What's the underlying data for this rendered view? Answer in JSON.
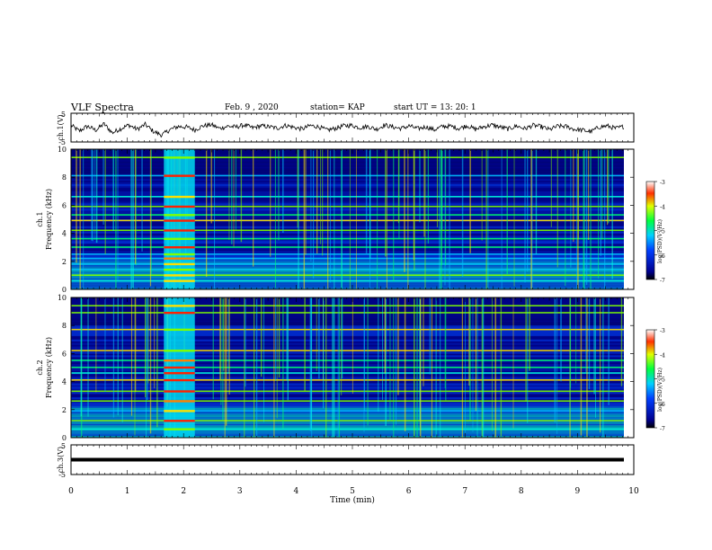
{
  "header": {
    "title": "VLF Spectra",
    "date": "Feb. 9  , 2020",
    "station": "station= KAP",
    "start": "start  UT  =   13: 20: 1"
  },
  "chart_data": [
    {
      "type": "line",
      "panel": "ch1-waveform",
      "ylabel": "ch.1(V)",
      "ylim": [
        -5,
        5
      ],
      "yticks": [
        "5",
        "-5"
      ],
      "xlim": [
        0,
        10
      ],
      "series": [
        {
          "values": [
            0.8,
            -1.2,
            0.5,
            -0.9,
            1.3,
            -1.8,
            -0.4,
            0.9,
            -0.6,
            1.1,
            -1.4,
            -2.6,
            -0.7,
            0.4,
            0.2,
            -0.8,
            0.6,
            1.0,
            -0.3,
            0.5,
            0.2,
            0.9,
            -0.1,
            0.6,
            0.3,
            -0.2,
            0.8,
            0.1,
            -0.5,
            0.7,
            0.3,
            -0.9,
            -0.3,
            0.6,
            0.8,
            0.0,
            0.4,
            -0.6,
            0.9,
            0.2,
            -0.3,
            0.6,
            -0.4,
            0.3,
            -0.8,
            0.4,
            0.5,
            -0.3,
            0.7,
            -0.6,
            0.3,
            0.9,
            0.2,
            -0.5,
            0.6,
            -0.4,
            0.8,
            0.3,
            -0.7,
            0.5,
            0.4,
            -0.6,
            -0.9,
            -1.4,
            0.2,
            0.6,
            -0.3,
            0.4
          ]
        }
      ]
    },
    {
      "type": "heatmap",
      "panel": "ch1-spectrogram",
      "ylabel": "ch.1\nFrequency  (kHz)",
      "ylim": [
        0,
        10
      ],
      "yticks": [
        "0",
        "2",
        "4",
        "6",
        "8",
        "10"
      ],
      "xlim": [
        0,
        10
      ],
      "colorbar": {
        "label": "log(PSD)(V²/Hz)",
        "range": [
          -7,
          -3
        ],
        "ticks": [
          "-3",
          "-4",
          "-5",
          "-6",
          "-7"
        ]
      },
      "burst_min": [
        1.65,
        2.2
      ],
      "bands_khz": [
        0.6,
        1.0,
        1.4,
        1.8,
        2.2,
        2.5,
        3.0,
        3.6,
        4.2,
        4.9,
        5.3,
        5.9,
        6.6,
        8.1,
        9.4
      ]
    },
    {
      "type": "heatmap",
      "panel": "ch2-spectrogram",
      "ylabel": "ch.2\nFrequency  (kHz)",
      "ylim": [
        0,
        10
      ],
      "yticks": [
        "0",
        "2",
        "4",
        "6",
        "8",
        "10"
      ],
      "xlim": [
        0,
        10
      ],
      "colorbar": {
        "label": "log(PSD)(V²/Hz)",
        "range": [
          -7,
          -3
        ],
        "ticks": [
          "-3",
          "-4",
          "-5",
          "-6",
          "-7"
        ]
      },
      "burst_min": [
        1.65,
        2.2
      ],
      "bands_khz": [
        0.6,
        1.2,
        1.9,
        2.6,
        3.3,
        4.1,
        4.6,
        5.0,
        5.5,
        6.2,
        7.7,
        8.9,
        9.4
      ]
    },
    {
      "type": "line",
      "panel": "ch3-waveform",
      "ylabel": "ch.3(V)",
      "ylim": [
        -5,
        5
      ],
      "yticks": [
        "5",
        "-5"
      ],
      "xlim": [
        0,
        10
      ],
      "series": [
        {
          "values": [
            0,
            0
          ]
        }
      ]
    }
  ],
  "xaxis": {
    "label": "Time  (min)",
    "ticks": [
      "0",
      "1",
      "2",
      "3",
      "4",
      "5",
      "6",
      "7",
      "8",
      "9",
      "10"
    ]
  },
  "colors": {
    "low": "#000080",
    "mid": "#00c8ff",
    "high": "#ff0000"
  }
}
